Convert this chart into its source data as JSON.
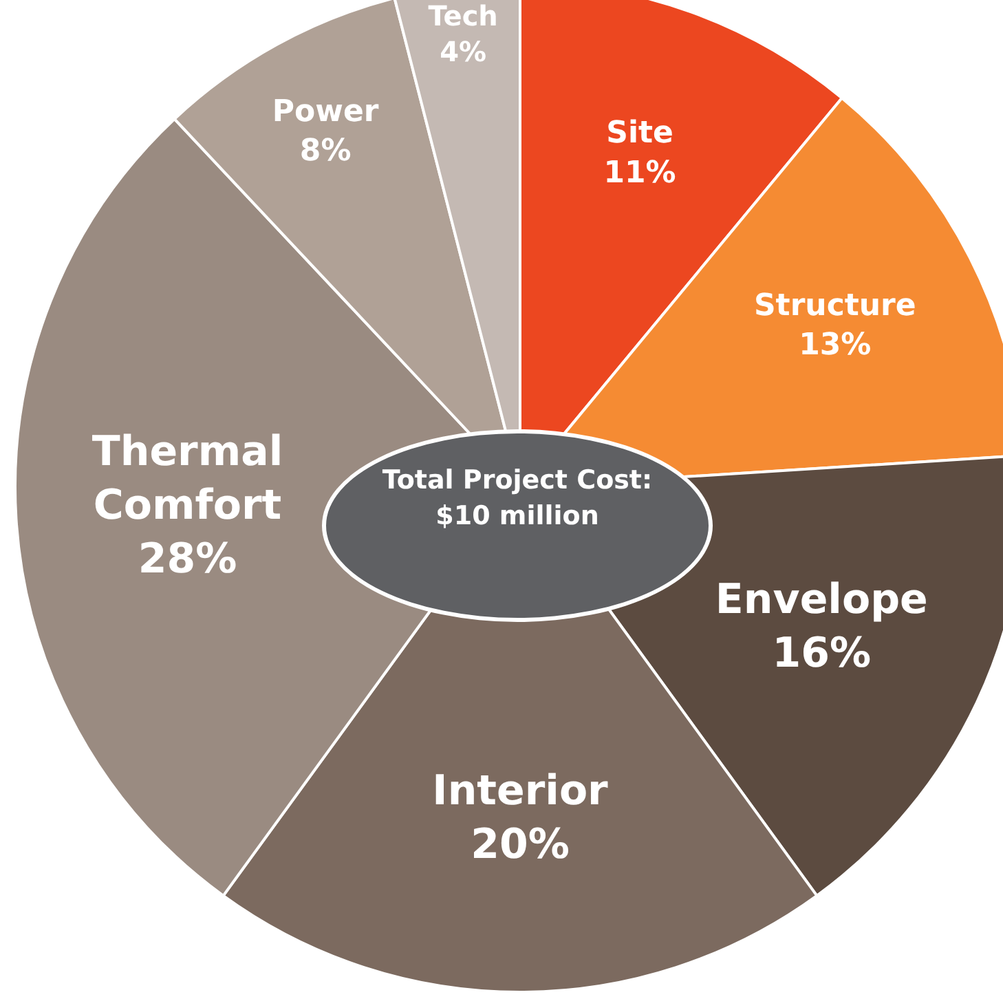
{
  "chart_data": {
    "type": "pie",
    "categories": [
      "Site",
      "Structure",
      "Envelope",
      "Interior",
      "Thermal Comfort",
      "Power",
      "Tech"
    ],
    "values": [
      11,
      13,
      16,
      20,
      28,
      8,
      4
    ],
    "colors": [
      "#ec4720",
      "#f58b33",
      "#5c4b40",
      "#7c6a5f",
      "#9a8b81",
      "#b0a196",
      "#c4b9b3"
    ],
    "value_labels": [
      "11%",
      "13%",
      "16%",
      "20%",
      "28%",
      "8%",
      "4%"
    ],
    "annotations": [
      "Total Project Cost: $10 million"
    ],
    "legend": false
  }
}
